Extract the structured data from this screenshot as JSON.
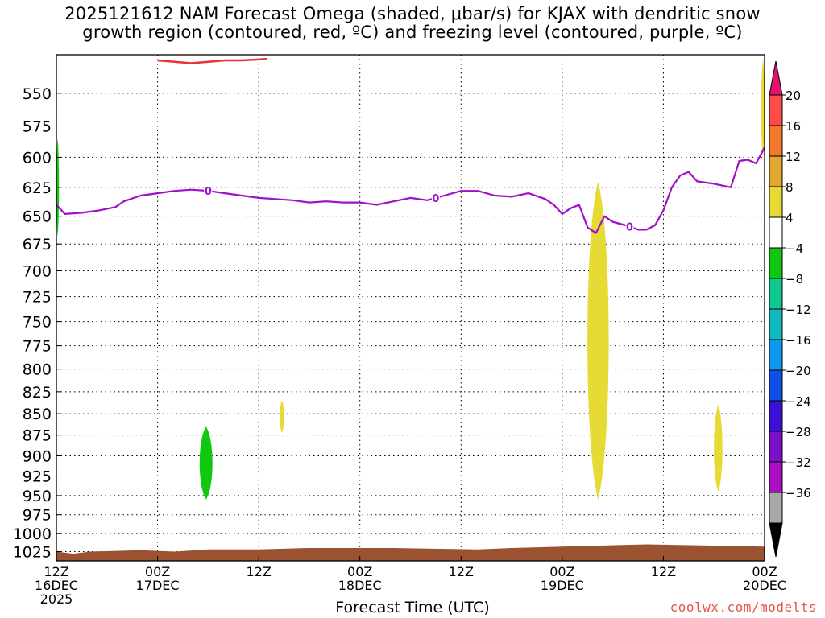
{
  "title": {
    "line1": "2025121612 NAM Forecast Omega (shaded, μbar/s) for KJAX with dendritic snow",
    "line2": "growth region (contoured, red, ºC) and freezing level (contoured, purple, ºC)"
  },
  "credit": "coolwx.com/modelts",
  "chart_data": {
    "type": "contour",
    "title": "2025121612 NAM Forecast Omega (shaded, μbar/s) for KJAX with dendritic snow growth region (contoured, red, ºC) and freezing level (contoured, purple, ºC)",
    "xlabel": "Forecast Time (UTC)",
    "ylabel": "",
    "x_range_hours": [
      0,
      84
    ],
    "y_range_mb": [
      522,
      1038
    ],
    "y_scale": "log-pressure",
    "grid": true,
    "y_ticks": [
      550,
      575,
      600,
      625,
      650,
      675,
      700,
      725,
      750,
      775,
      800,
      825,
      850,
      875,
      900,
      925,
      950,
      975,
      1000,
      1025
    ],
    "x_ticks": [
      {
        "hour": 0,
        "lines": [
          "12Z",
          "16DEC",
          "2025"
        ]
      },
      {
        "hour": 12,
        "lines": [
          "00Z",
          "17DEC"
        ]
      },
      {
        "hour": 24,
        "lines": [
          "12Z"
        ]
      },
      {
        "hour": 36,
        "lines": [
          "00Z",
          "18DEC"
        ]
      },
      {
        "hour": 48,
        "lines": [
          "12Z"
        ]
      },
      {
        "hour": 60,
        "lines": [
          "00Z",
          "19DEC"
        ]
      },
      {
        "hour": 72,
        "lines": [
          "12Z"
        ]
      },
      {
        "hour": 84,
        "lines": [
          "00Z",
          "20DEC"
        ]
      }
    ],
    "colorbar": {
      "labels": [
        "20",
        "16",
        "12",
        "8",
        "4",
        "−4",
        "−8",
        "−12",
        "−16",
        "−20",
        "−24",
        "−28",
        "−32",
        "−36"
      ],
      "colors": [
        "#ff4a4a",
        "#f07a2a",
        "#e0a830",
        "#e6da35",
        "#ffffff",
        "#10c810",
        "#10c890",
        "#10b8c0",
        "#1098f0",
        "#1050e8",
        "#3a10d8",
        "#7a10c8",
        "#a810c0",
        "#a8a8a8"
      ],
      "over_color": "#e6136e",
      "under_color": "#000000"
    },
    "freezing_level": {
      "label": "0",
      "color": "#a010c8",
      "points": [
        [
          0,
          640
        ],
        [
          1,
          648
        ],
        [
          3,
          647
        ],
        [
          5,
          645
        ],
        [
          7,
          642
        ],
        [
          8,
          637
        ],
        [
          10,
          632
        ],
        [
          12,
          630
        ],
        [
          14,
          628
        ],
        [
          16,
          627
        ],
        [
          18,
          628
        ],
        [
          20,
          630
        ],
        [
          22,
          632
        ],
        [
          24,
          634
        ],
        [
          26,
          635
        ],
        [
          28,
          636
        ],
        [
          30,
          638
        ],
        [
          32,
          637
        ],
        [
          34,
          638
        ],
        [
          36,
          638
        ],
        [
          38,
          640
        ],
        [
          40,
          637
        ],
        [
          42,
          634
        ],
        [
          44,
          636
        ],
        [
          46,
          632
        ],
        [
          48,
          628
        ],
        [
          50,
          628
        ],
        [
          52,
          632
        ],
        [
          54,
          633
        ],
        [
          56,
          630
        ],
        [
          58,
          635
        ],
        [
          59,
          640
        ],
        [
          60,
          648
        ],
        [
          61,
          643
        ],
        [
          62,
          640
        ],
        [
          63,
          660
        ],
        [
          64,
          665
        ],
        [
          65,
          650
        ],
        [
          66,
          655
        ],
        [
          67,
          657
        ],
        [
          68,
          659
        ],
        [
          69,
          662
        ],
        [
          70,
          662
        ],
        [
          71,
          658
        ],
        [
          72,
          645
        ],
        [
          73,
          625
        ],
        [
          74,
          615
        ],
        [
          75,
          612
        ],
        [
          76,
          620
        ],
        [
          78,
          622
        ],
        [
          80,
          625
        ],
        [
          81,
          603
        ],
        [
          82,
          602
        ],
        [
          83,
          605
        ],
        [
          84,
          592
        ]
      ],
      "labels_at_hours": [
        18,
        45,
        68
      ]
    },
    "dendritic_contour": {
      "color": "#e83232",
      "points": [
        [
          12,
          526
        ],
        [
          14,
          527
        ],
        [
          16,
          528
        ],
        [
          18,
          527
        ],
        [
          20,
          526
        ],
        [
          22,
          526
        ],
        [
          25,
          525
        ]
      ]
    },
    "omega_regions": [
      {
        "value": "-4 to -8",
        "color": "#10c810",
        "x": [
          0,
          0.3
        ],
        "y": [
          585,
          668
        ]
      },
      {
        "value": "-4 to -8",
        "color": "#10c810",
        "x": [
          17,
          18.5
        ],
        "y": [
          865,
          955
        ]
      },
      {
        "value": "4 to 8",
        "color": "#e6da35",
        "x": [
          26.5,
          27
        ],
        "y": [
          835,
          872
        ]
      },
      {
        "value": "4 to 8",
        "color": "#e6da35",
        "x": [
          63,
          65.5
        ],
        "y": [
          620,
          955
        ]
      },
      {
        "value": "4 to 8",
        "color": "#e6da35",
        "x": [
          78,
          79
        ],
        "y": [
          840,
          945
        ]
      },
      {
        "value": "4 to 8",
        "color": "#e6da35",
        "x": [
          83.6,
          84
        ],
        "y": [
          525,
          600
        ]
      }
    ],
    "surface": {
      "color": "#9a5230",
      "points": [
        [
          0,
          1025
        ],
        [
          2,
          1028
        ],
        [
          4,
          1025
        ],
        [
          10,
          1023
        ],
        [
          14,
          1025
        ],
        [
          18,
          1022
        ],
        [
          24,
          1022
        ],
        [
          30,
          1020
        ],
        [
          40,
          1020
        ],
        [
          50,
          1022
        ],
        [
          54,
          1020
        ],
        [
          60,
          1018
        ],
        [
          70,
          1015
        ],
        [
          84,
          1018
        ]
      ]
    }
  }
}
